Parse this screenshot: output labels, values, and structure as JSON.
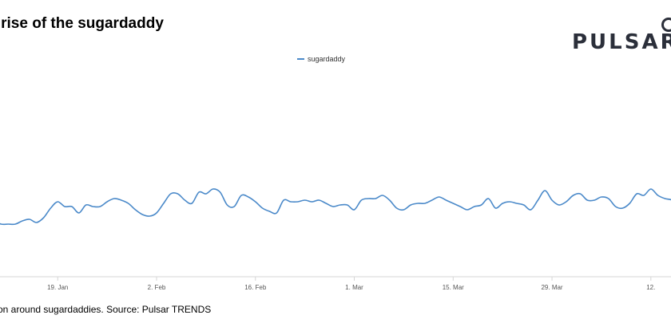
{
  "header": {
    "title": "ly rise of the sugardaddy",
    "brand": "PULSAR"
  },
  "legend": {
    "label": "sugardaddy"
  },
  "caption": "tion around sugardaddies. Source: Pulsar TRENDS",
  "colors": {
    "series": "#4a89c9",
    "axis": "#d6d6d6",
    "title": "#000000",
    "brand": "#2b2f3a"
  },
  "chart_data": {
    "type": "line",
    "title": "ly rise of the sugardaddy",
    "xlabel": "",
    "ylabel": "",
    "grid": false,
    "legend_position": "top-center",
    "x_ticks": [
      "19. Jan",
      "2. Feb",
      "16. Feb",
      "1. Mar",
      "15. Mar",
      "29. Mar",
      "12."
    ],
    "y_axis": "unlabeled (relative volume)",
    "series": [
      {
        "name": "sugardaddy",
        "x_start": "8. Jan",
        "x_step_days": 1,
        "values": [
          42,
          41,
          35,
          33,
          33,
          33,
          35,
          36,
          34,
          37,
          43,
          47,
          44,
          44,
          40,
          45,
          44,
          44,
          47,
          49,
          48,
          46,
          42,
          39,
          38,
          40,
          46,
          52,
          52,
          48,
          46,
          53,
          52,
          55,
          53,
          45,
          44,
          51,
          50,
          47,
          43,
          41,
          40,
          48,
          47,
          47,
          48,
          47,
          48,
          46,
          44,
          45,
          45,
          42,
          48,
          49,
          49,
          51,
          48,
          43,
          42,
          45,
          46,
          46,
          48,
          50,
          48,
          46,
          44,
          42,
          44,
          45,
          49,
          43,
          46,
          47,
          46,
          45,
          42,
          48,
          54,
          48,
          45,
          47,
          51,
          52,
          48,
          48,
          50,
          49,
          44,
          43,
          46,
          52,
          51,
          55,
          51,
          49,
          48,
          44,
          46,
          48,
          56,
          63,
          69,
          62,
          57,
          57,
          58,
          60,
          59,
          63,
          66,
          68,
          69,
          75,
          84,
          79,
          77,
          78,
          85,
          80,
          80,
          76,
          70,
          72,
          74,
          74,
          70,
          68,
          62,
          66,
          61,
          55,
          54,
          52,
          55,
          62,
          64,
          65,
          58,
          57,
          55,
          53,
          52,
          51,
          49,
          47,
          46,
          45,
          44,
          44,
          43,
          43,
          42,
          42,
          60
        ]
      }
    ]
  }
}
